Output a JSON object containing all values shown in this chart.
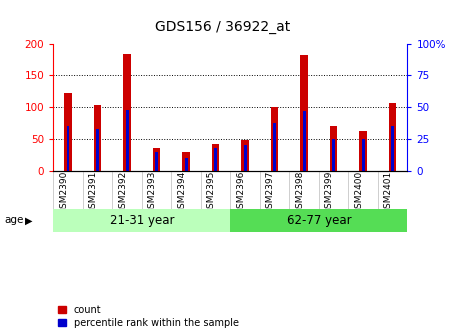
{
  "title": "GDS156 / 36922_at",
  "samples": [
    "GSM2390",
    "GSM2391",
    "GSM2392",
    "GSM2393",
    "GSM2394",
    "GSM2395",
    "GSM2396",
    "GSM2397",
    "GSM2398",
    "GSM2399",
    "GSM2400",
    "GSM2401"
  ],
  "count_values": [
    123,
    103,
    183,
    36,
    29,
    42,
    48,
    100,
    182,
    70,
    62,
    106
  ],
  "percentile_values": [
    35,
    33,
    48,
    15,
    10,
    18,
    20,
    38,
    47,
    25,
    25,
    35
  ],
  "group1_label": "21-31 year",
  "group2_label": "62-77 year",
  "group1_count": 6,
  "group2_count": 6,
  "bar_color_red": "#cc0000",
  "bar_color_blue": "#0000cc",
  "group1_bg": "#bbffbb",
  "group2_bg": "#55dd55",
  "ylim_left": [
    0,
    200
  ],
  "ylim_right": [
    0,
    100
  ],
  "yticks_left": [
    0,
    50,
    100,
    150,
    200
  ],
  "yticks_right": [
    0,
    25,
    50,
    75,
    100
  ],
  "ylabel_right_ticks": [
    "0",
    "25",
    "50",
    "75",
    "100%"
  ],
  "bar_width": 0.25,
  "percentile_bar_width": 0.1,
  "xlim": [
    -0.5,
    11.5
  ]
}
